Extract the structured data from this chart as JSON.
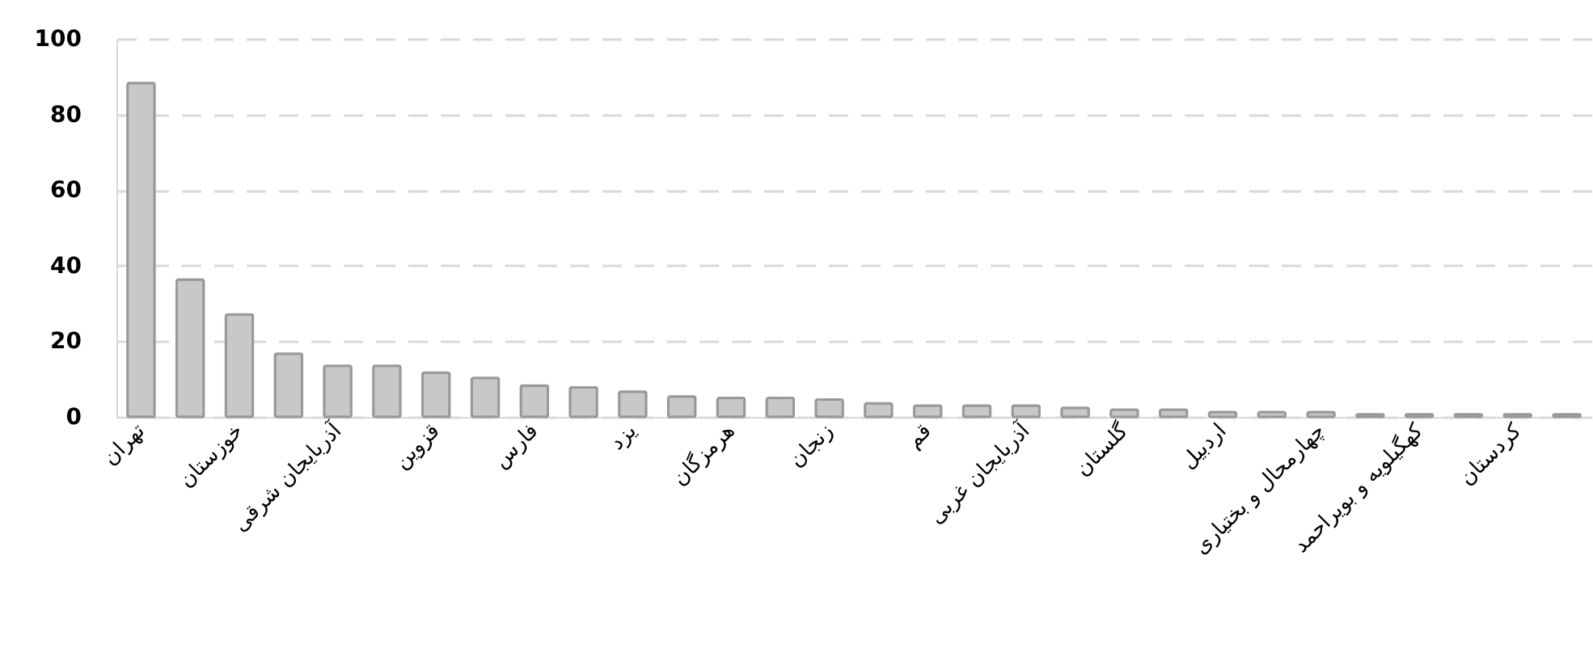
{
  "chart_data": {
    "type": "bar",
    "categories": [
      "تهران",
      null,
      "خوزستان",
      null,
      "آذربایجان شرقی",
      null,
      "قزوین",
      null,
      "فارس",
      null,
      "یزد",
      null,
      "هرمزگان",
      null,
      "زنجان",
      null,
      "قم",
      null,
      "آذربایجان غربی",
      null,
      "گلستان",
      null,
      "اردبیل",
      null,
      "چهارمحال و بختیاری",
      null,
      "کهگیلویه و بویراحمد",
      null,
      "کردستان",
      null
    ],
    "values": [
      88.3,
      36.3,
      27.1,
      16.7,
      13.5,
      13.5,
      11.7,
      10.3,
      8.3,
      7.8,
      6.7,
      5.4,
      5,
      5,
      4.6,
      3.6,
      3,
      3,
      3,
      2.4,
      1.9,
      1.9,
      1.3,
      1.3,
      1.3,
      0.7,
      0.7,
      0.7,
      0.7,
      0.7
    ],
    "color": "#c8c8c8",
    "ylim": [
      0,
      100
    ],
    "yticks": [
      0,
      20,
      40,
      60,
      80,
      100
    ],
    "grid": "y"
  }
}
